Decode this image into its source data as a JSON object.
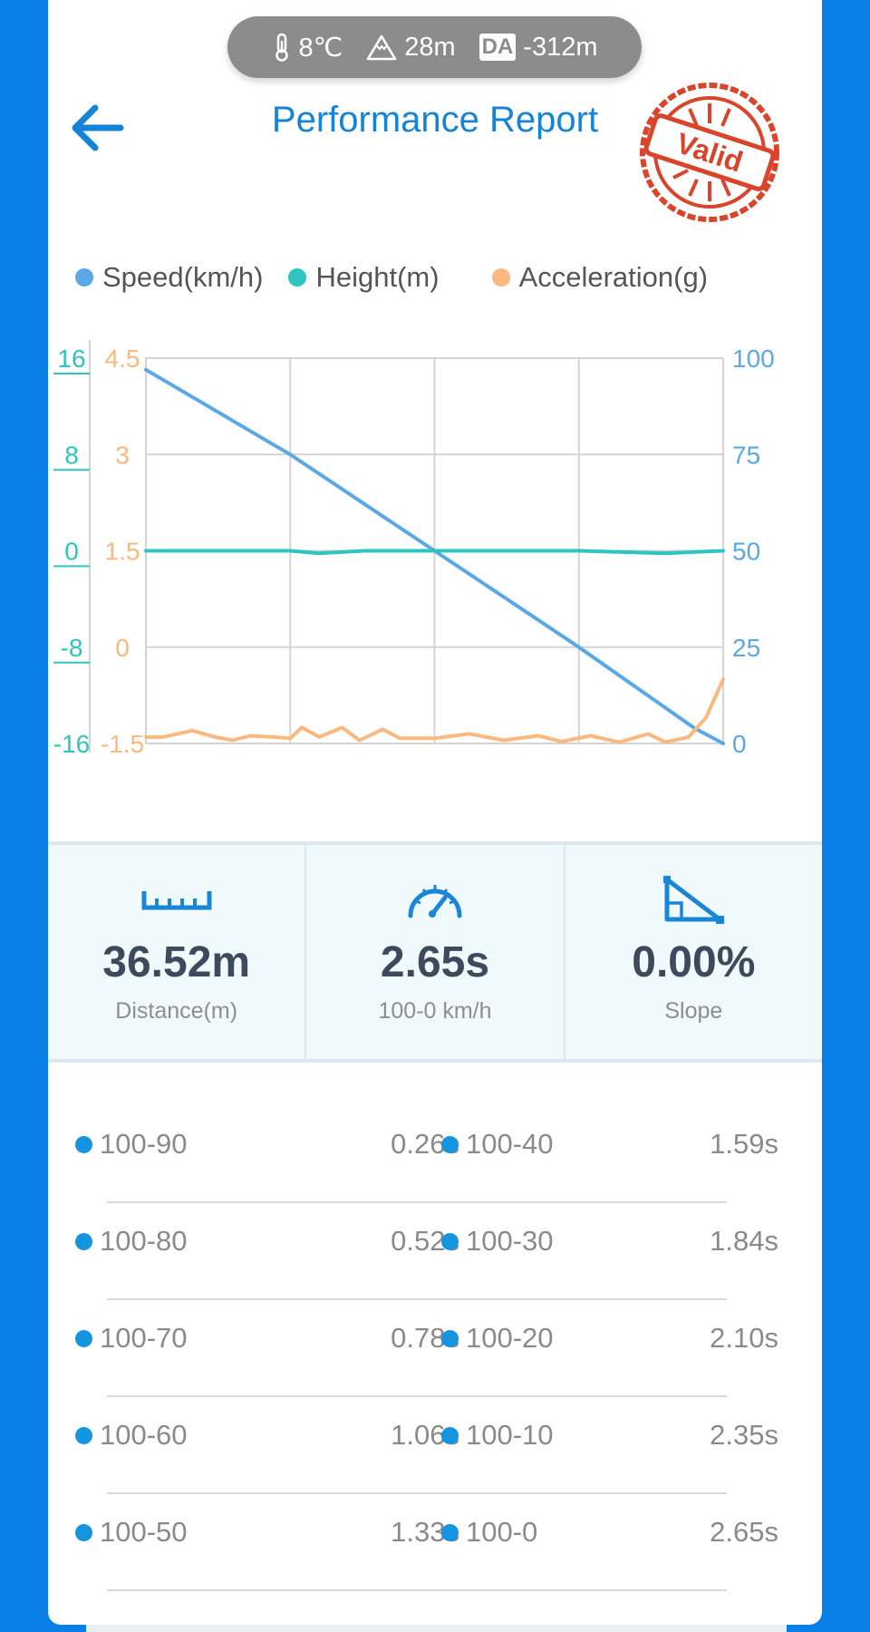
{
  "env": {
    "temperature": "8℃",
    "altitude": "28m",
    "da_label": "DA",
    "density_altitude": "-312m"
  },
  "header": {
    "title": "Performance Report",
    "stamp_text": "Valid"
  },
  "legend": [
    {
      "label": "Speed(km/h)",
      "color": "#5aa9e6"
    },
    {
      "label": "Height(m)",
      "color": "#2ec4c0"
    },
    {
      "label": "Acceleration(g)",
      "color": "#fbb87f"
    }
  ],
  "chart_data": {
    "type": "line",
    "x_segments": 4,
    "axes": {
      "height_ticks": [
        "16",
        "8",
        "0",
        "-8",
        "-16"
      ],
      "acceleration_ticks": [
        "4.5",
        "3",
        "1.5",
        "0",
        "-1.5"
      ],
      "speed_ticks": [
        "100",
        "75",
        "50",
        "25",
        "0"
      ],
      "speed_range": [
        0,
        100
      ],
      "height_range": [
        -16,
        16
      ],
      "acceleration_range": [
        -1.5,
        4.5
      ]
    },
    "grid": true,
    "series": [
      {
        "name": "Speed(km/h)",
        "axis": "right",
        "color": "#5aa9e6",
        "points": [
          [
            0,
            97
          ],
          [
            0.25,
            75
          ],
          [
            0.5,
            50
          ],
          [
            0.75,
            25
          ],
          [
            0.95,
            4
          ],
          [
            1,
            0
          ]
        ]
      },
      {
        "name": "Height(m)",
        "axis": "left-outer",
        "color": "#2ec4c0",
        "points": [
          [
            0,
            0
          ],
          [
            0.25,
            0
          ],
          [
            0.3,
            -0.2
          ],
          [
            0.38,
            0
          ],
          [
            0.5,
            0
          ],
          [
            0.75,
            0
          ],
          [
            0.9,
            -0.2
          ],
          [
            1,
            0
          ]
        ]
      },
      {
        "name": "Acceleration(g)",
        "axis": "left-inner",
        "color": "#fbb87f",
        "points": [
          [
            0,
            -1.4
          ],
          [
            0.03,
            -1.4
          ],
          [
            0.08,
            -1.3
          ],
          [
            0.12,
            -1.4
          ],
          [
            0.15,
            -1.45
          ],
          [
            0.18,
            -1.38
          ],
          [
            0.22,
            -1.4
          ],
          [
            0.25,
            -1.42
          ],
          [
            0.27,
            -1.25
          ],
          [
            0.3,
            -1.4
          ],
          [
            0.34,
            -1.25
          ],
          [
            0.37,
            -1.45
          ],
          [
            0.41,
            -1.28
          ],
          [
            0.44,
            -1.42
          ],
          [
            0.5,
            -1.42
          ],
          [
            0.56,
            -1.35
          ],
          [
            0.62,
            -1.45
          ],
          [
            0.68,
            -1.38
          ],
          [
            0.72,
            -1.47
          ],
          [
            0.77,
            -1.38
          ],
          [
            0.82,
            -1.48
          ],
          [
            0.87,
            -1.35
          ],
          [
            0.9,
            -1.48
          ],
          [
            0.94,
            -1.4
          ],
          [
            0.97,
            -1.1
          ],
          [
            1,
            -0.5
          ]
        ]
      }
    ]
  },
  "stats": [
    {
      "value": "36.52m",
      "label": "Distance(m)",
      "icon": "ruler-icon"
    },
    {
      "value": "2.65s",
      "label": "100-0 km/h",
      "icon": "speedometer-icon"
    },
    {
      "value": "0.00%",
      "label": "Slope",
      "icon": "slope-icon"
    }
  ],
  "splits": [
    {
      "left_label": "100-90",
      "left_value": "0.26s",
      "right_label": "100-40",
      "right_value": "1.59s"
    },
    {
      "left_label": "100-80",
      "left_value": "0.52s",
      "right_label": "100-30",
      "right_value": "1.84s"
    },
    {
      "left_label": "100-70",
      "left_value": "0.78s",
      "right_label": "100-20",
      "right_value": "2.10s"
    },
    {
      "left_label": "100-60",
      "left_value": "1.06s",
      "right_label": "100-10",
      "right_value": "2.35s"
    },
    {
      "left_label": "100-50",
      "left_value": "1.33s",
      "right_label": "100-0",
      "right_value": "2.65s"
    }
  ],
  "colors": {
    "accent": "#1584d8",
    "background": "#0a7fe8",
    "stamp": "#d9442b",
    "dot": "#1594e0"
  }
}
